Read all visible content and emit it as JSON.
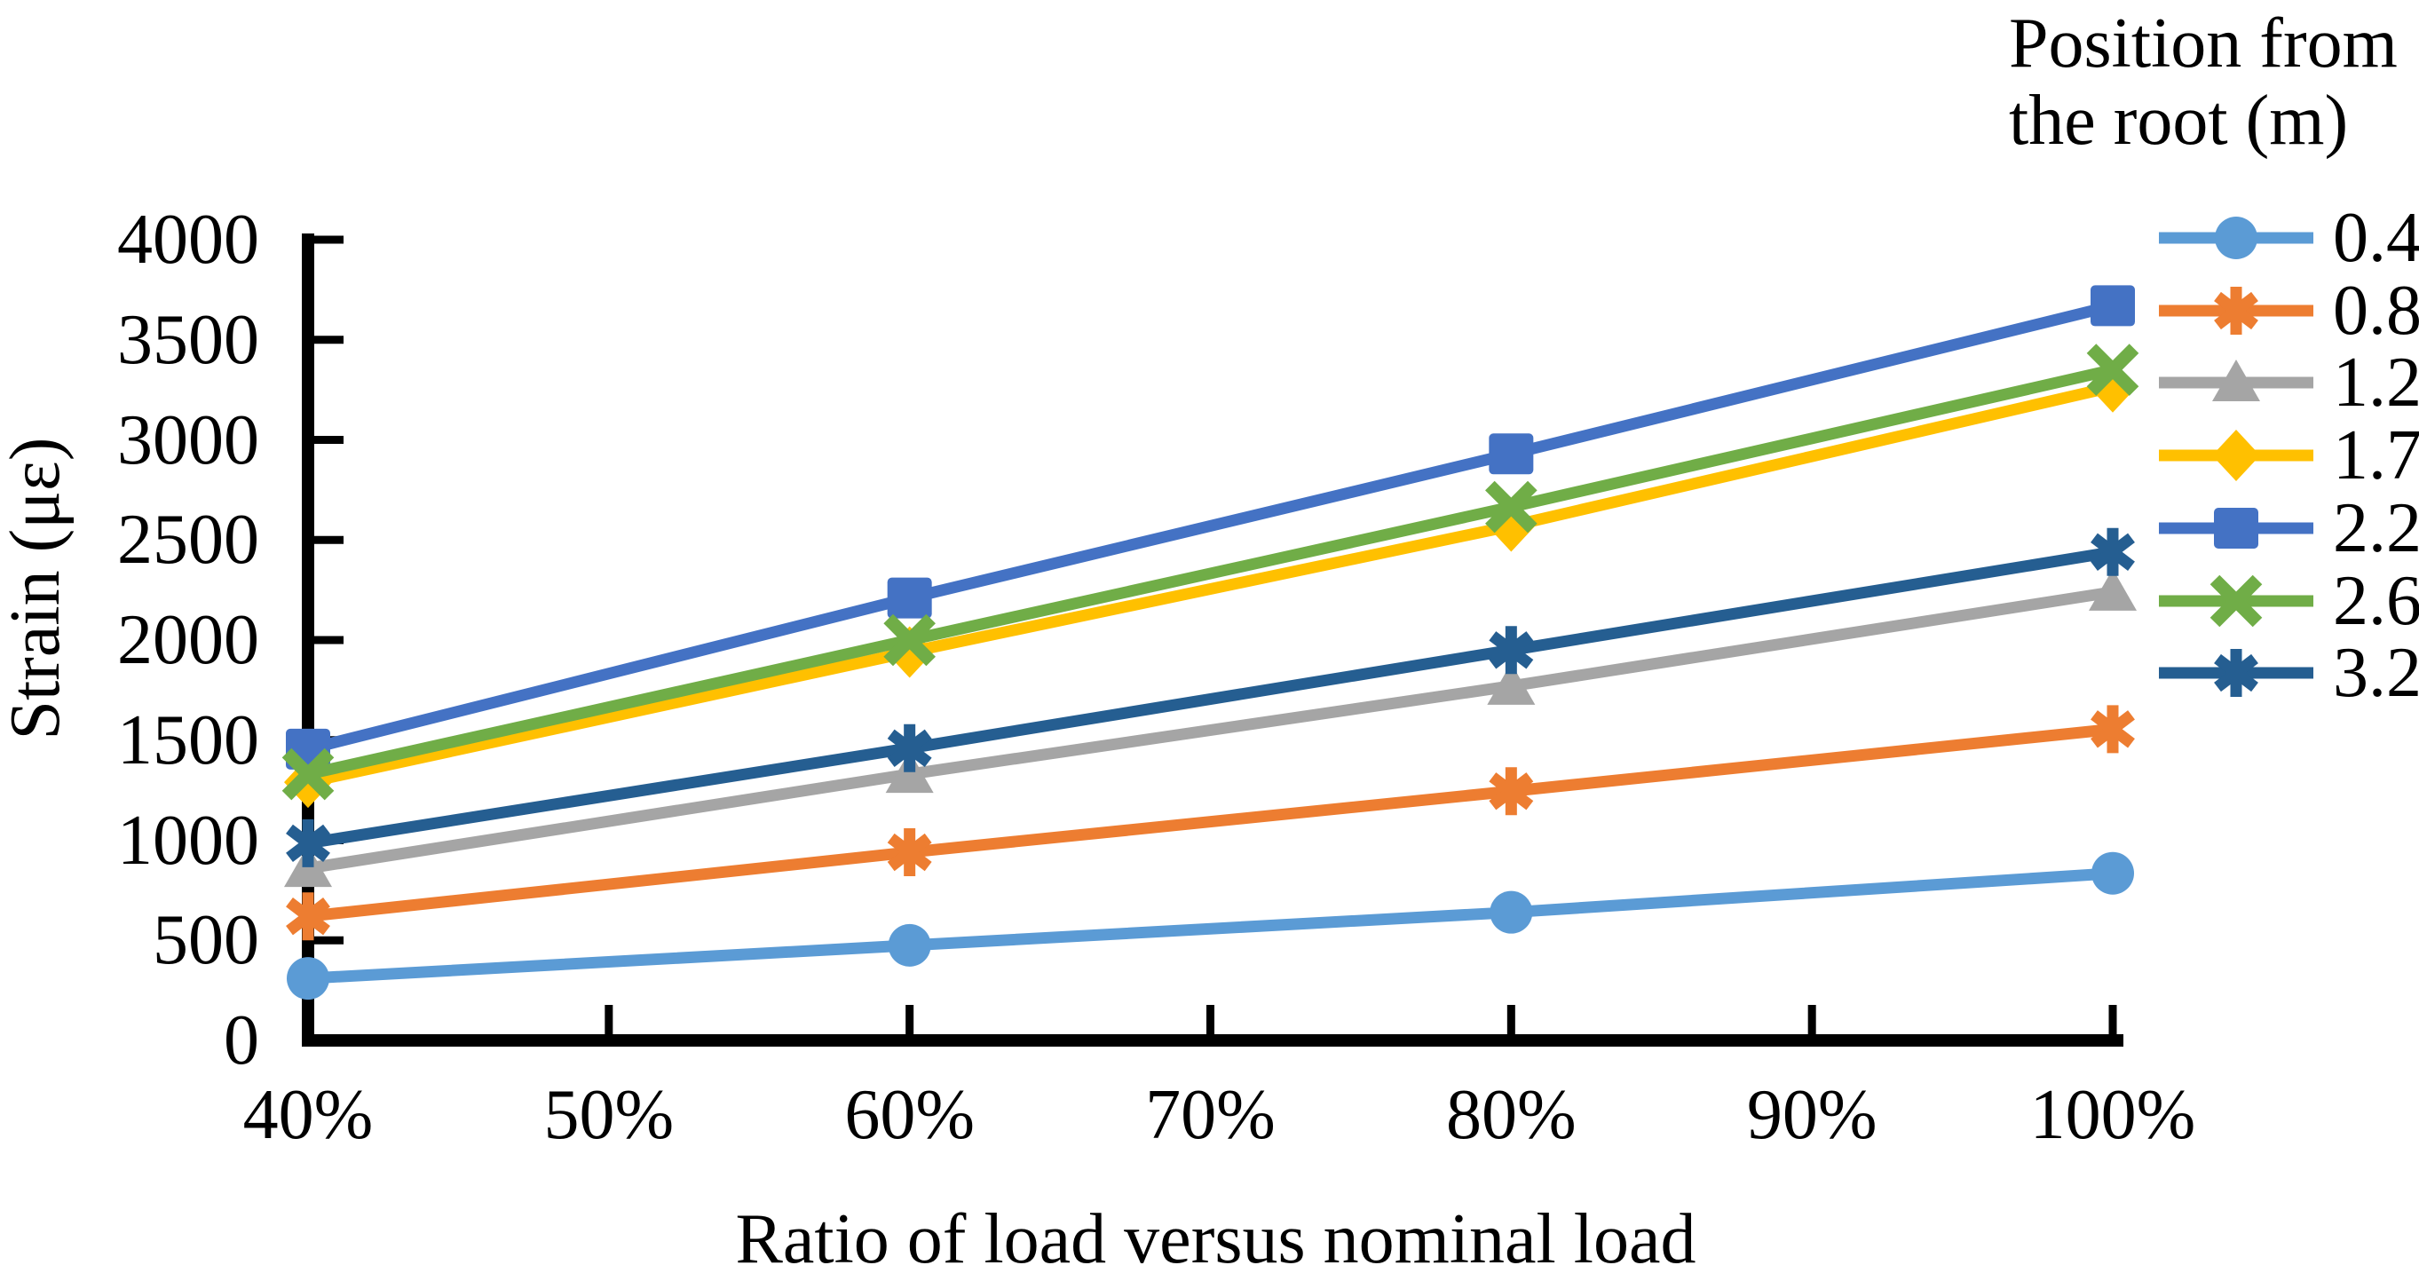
{
  "chart_data": {
    "type": "line",
    "title": "",
    "xlabel": "Ratio of load versus nominal load",
    "ylabel": "Strain (με)",
    "legend_title": [
      "Position from",
      "the root (m)"
    ],
    "legend_position": "top-right",
    "grid": false,
    "axis_color": "#000000",
    "x": [
      40,
      60,
      80,
      100
    ],
    "x_tick_values": [
      40,
      50,
      60,
      70,
      80,
      90,
      100
    ],
    "x_tick_labels": [
      "40%",
      "50%",
      "60%",
      "70%",
      "80%",
      "90%",
      "100%"
    ],
    "y_tick_values": [
      0,
      500,
      1000,
      1500,
      2000,
      2500,
      3000,
      3500,
      4000
    ],
    "y_tick_labels": [
      "0",
      "500",
      "1000",
      "1500",
      "2000",
      "2500",
      "3000",
      "3500",
      "4000"
    ],
    "xlim": [
      40,
      100
    ],
    "ylim": [
      0,
      4000
    ],
    "series": [
      {
        "name": "0.4",
        "marker": "circle",
        "color": "#5B9BD5",
        "values": [
          310,
          475,
          640,
          835
        ]
      },
      {
        "name": "0.8",
        "marker": "asterisk",
        "color": "#ED7D31",
        "values": [
          620,
          940,
          1245,
          1555
        ]
      },
      {
        "name": "1.2",
        "marker": "triangle",
        "color": "#A5A5A5",
        "values": [
          860,
          1330,
          1770,
          2240
        ]
      },
      {
        "name": "1.7",
        "marker": "diamond",
        "color": "#FFC000",
        "values": [
          1290,
          1940,
          2570,
          3265
        ]
      },
      {
        "name": "2.2",
        "marker": "square",
        "color": "#4472C4",
        "values": [
          1455,
          2210,
          2930,
          3670
        ]
      },
      {
        "name": "2.6",
        "marker": "x",
        "color": "#70AD47",
        "values": [
          1330,
          2000,
          2665,
          3350
        ]
      },
      {
        "name": "3.2",
        "marker": "asterisk",
        "color": "#255E91",
        "values": [
          985,
          1460,
          1950,
          2440
        ]
      }
    ]
  }
}
